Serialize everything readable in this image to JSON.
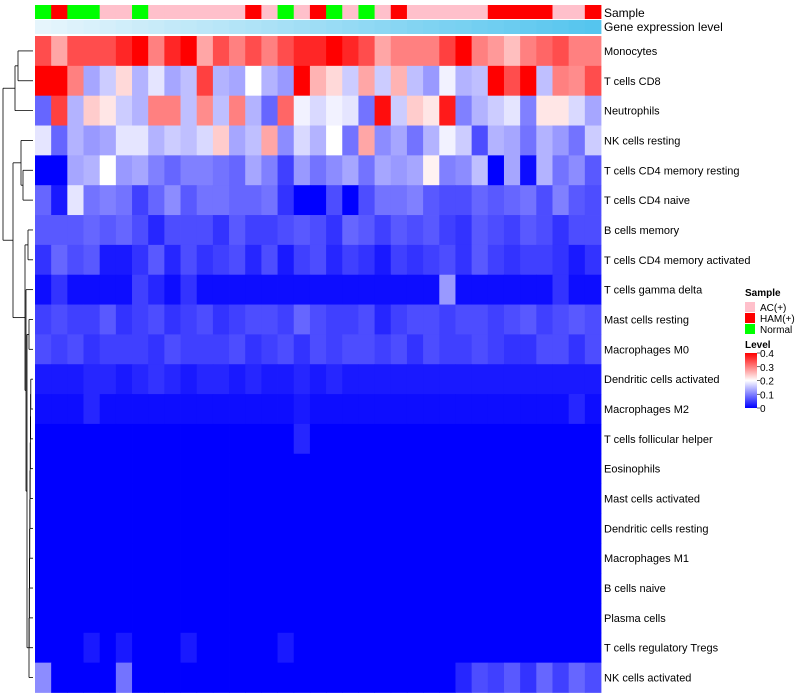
{
  "colors": {
    "low": "#0000FF",
    "mid": "#FFFFFF",
    "high": "#FF0000",
    "sample_ac": "#FFC0CB",
    "sample_ham": "#FF0000",
    "sample_normal": "#00FF00",
    "gene_expression_light": "#E6F5FC",
    "gene_expression_dark": "#55C5EE",
    "dendrogram": "#000000"
  },
  "chart_data": {
    "type": "heatmap",
    "title": "",
    "annotation_tracks": [
      {
        "name": "Sample",
        "label": "Sample"
      },
      {
        "name": "Gene expression level",
        "label": "Gene expression level"
      }
    ],
    "sample_track": [
      "Normal",
      "HAM(+)",
      "Normal",
      "Normal",
      "AC(+)",
      "AC(+)",
      "Normal",
      "AC(+)",
      "AC(+)",
      "AC(+)",
      "AC(+)",
      "AC(+)",
      "AC(+)",
      "HAM(+)",
      "AC(+)",
      "Normal",
      "AC(+)",
      "HAM(+)",
      "Normal",
      "AC(+)",
      "Normal",
      "AC(+)",
      "HAM(+)",
      "AC(+)",
      "AC(+)",
      "AC(+)",
      "AC(+)",
      "AC(+)",
      "HAM(+)",
      "HAM(+)",
      "HAM(+)",
      "HAM(+)",
      "AC(+)",
      "AC(+)",
      "HAM(+)"
    ],
    "gene_expression_level": [
      0.0,
      0.03,
      0.06,
      0.09,
      0.12,
      0.15,
      0.18,
      0.21,
      0.24,
      0.26,
      0.29,
      0.32,
      0.35,
      0.38,
      0.41,
      0.44,
      0.47,
      0.5,
      0.53,
      0.56,
      0.59,
      0.62,
      0.65,
      0.68,
      0.71,
      0.74,
      0.76,
      0.79,
      0.82,
      0.85,
      0.88,
      0.91,
      0.94,
      0.97,
      1.0
    ],
    "rows": [
      "Monocytes",
      "T cells CD8",
      "Neutrophils",
      "NK cells resting",
      "T cells CD4 memory resting",
      "T cells CD4 naive",
      "B cells memory",
      "T cells CD4 memory activated",
      "T cells gamma delta",
      "Mast cells resting",
      "Macrophages M0",
      "Dendritic cells activated",
      "Macrophages M2",
      "T cells follicular helper",
      "Eosinophils",
      "Mast cells activated",
      "Dendritic cells resting",
      "Macrophages M1",
      "B cells naive",
      "Plasma cells",
      "T cells regulatory  Tregs",
      "NK cells activated"
    ],
    "values": [
      [
        0.34,
        0.27,
        0.34,
        0.34,
        0.34,
        0.37,
        0.4,
        0.3,
        0.37,
        0.4,
        0.27,
        0.34,
        0.3,
        0.34,
        0.3,
        0.34,
        0.37,
        0.37,
        0.4,
        0.37,
        0.34,
        0.27,
        0.3,
        0.3,
        0.3,
        0.35,
        0.4,
        0.3,
        0.28,
        0.25,
        0.3,
        0.32,
        0.34,
        0.3,
        0.3
      ],
      [
        0.4,
        0.4,
        0.3,
        0.13,
        0.16,
        0.23,
        0.14,
        0.18,
        0.13,
        0.15,
        0.35,
        0.14,
        0.13,
        0.2,
        0.14,
        0.12,
        0.4,
        0.26,
        0.23,
        0.16,
        0.27,
        0.16,
        0.26,
        0.15,
        0.12,
        0.19,
        0.14,
        0.15,
        0.4,
        0.34,
        0.4,
        0.15,
        0.3,
        0.29,
        0.34
      ],
      [
        0.08,
        0.35,
        0.14,
        0.24,
        0.22,
        0.16,
        0.14,
        0.3,
        0.3,
        0.15,
        0.29,
        0.15,
        0.3,
        0.14,
        0.08,
        0.32,
        0.19,
        0.17,
        0.19,
        0.18,
        0.09,
        0.39,
        0.16,
        0.24,
        0.22,
        0.38,
        0.1,
        0.14,
        0.16,
        0.18,
        0.1,
        0.22,
        0.22,
        0.17,
        0.13
      ],
      [
        0.18,
        0.08,
        0.14,
        0.12,
        0.13,
        0.18,
        0.18,
        0.14,
        0.16,
        0.15,
        0.17,
        0.24,
        0.13,
        0.15,
        0.27,
        0.11,
        0.17,
        0.14,
        0.2,
        0.09,
        0.27,
        0.11,
        0.13,
        0.09,
        0.14,
        0.19,
        0.16,
        0.06,
        0.14,
        0.13,
        0.09,
        0.14,
        0.12,
        0.09,
        0.16
      ],
      [
        0.0,
        0.0,
        0.13,
        0.14,
        0.2,
        0.12,
        0.13,
        0.1,
        0.08,
        0.1,
        0.1,
        0.09,
        0.08,
        0.13,
        0.1,
        0.05,
        0.12,
        0.09,
        0.11,
        0.13,
        0.09,
        0.13,
        0.12,
        0.13,
        0.21,
        0.1,
        0.11,
        0.15,
        0.0,
        0.13,
        0.01,
        0.14,
        0.09,
        0.11,
        0.07
      ],
      [
        0.08,
        0.02,
        0.18,
        0.09,
        0.1,
        0.09,
        0.05,
        0.08,
        0.11,
        0.07,
        0.09,
        0.09,
        0.08,
        0.08,
        0.09,
        0.04,
        0.0,
        0.0,
        0.06,
        0.0,
        0.06,
        0.09,
        0.09,
        0.1,
        0.07,
        0.06,
        0.06,
        0.08,
        0.07,
        0.08,
        0.09,
        0.06,
        0.1,
        0.07,
        0.06
      ],
      [
        0.07,
        0.07,
        0.07,
        0.08,
        0.07,
        0.08,
        0.06,
        0.03,
        0.06,
        0.06,
        0.06,
        0.04,
        0.07,
        0.05,
        0.05,
        0.06,
        0.07,
        0.06,
        0.04,
        0.08,
        0.07,
        0.05,
        0.07,
        0.06,
        0.07,
        0.05,
        0.04,
        0.07,
        0.06,
        0.05,
        0.07,
        0.06,
        0.04,
        0.06,
        0.06
      ],
      [
        0.04,
        0.08,
        0.06,
        0.07,
        0.02,
        0.02,
        0.04,
        0.07,
        0.03,
        0.06,
        0.04,
        0.05,
        0.06,
        0.03,
        0.06,
        0.02,
        0.05,
        0.06,
        0.03,
        0.05,
        0.04,
        0.02,
        0.05,
        0.04,
        0.05,
        0.06,
        0.04,
        0.07,
        0.05,
        0.04,
        0.05,
        0.05,
        0.04,
        0.02,
        0.04
      ],
      [
        0.01,
        0.04,
        0.01,
        0.01,
        0.01,
        0.01,
        0.05,
        0.03,
        0.01,
        0.04,
        0.01,
        0.01,
        0.01,
        0.01,
        0.01,
        0.01,
        0.01,
        0.01,
        0.01,
        0.01,
        0.01,
        0.01,
        0.01,
        0.01,
        0.01,
        0.12,
        0.01,
        0.01,
        0.01,
        0.01,
        0.01,
        0.01,
        0.04,
        0.01,
        0.01
      ],
      [
        0.05,
        0.06,
        0.05,
        0.05,
        0.07,
        0.04,
        0.05,
        0.06,
        0.04,
        0.05,
        0.06,
        0.04,
        0.05,
        0.06,
        0.06,
        0.05,
        0.08,
        0.06,
        0.05,
        0.05,
        0.06,
        0.03,
        0.05,
        0.06,
        0.06,
        0.05,
        0.06,
        0.06,
        0.05,
        0.06,
        0.07,
        0.05,
        0.06,
        0.07,
        0.06
      ],
      [
        0.06,
        0.05,
        0.06,
        0.04,
        0.05,
        0.05,
        0.05,
        0.04,
        0.06,
        0.05,
        0.05,
        0.05,
        0.06,
        0.04,
        0.05,
        0.06,
        0.04,
        0.06,
        0.05,
        0.06,
        0.06,
        0.05,
        0.06,
        0.04,
        0.06,
        0.05,
        0.05,
        0.06,
        0.05,
        0.04,
        0.04,
        0.06,
        0.06,
        0.04,
        0.06
      ],
      [
        0.02,
        0.02,
        0.02,
        0.03,
        0.03,
        0.02,
        0.03,
        0.04,
        0.03,
        0.02,
        0.03,
        0.03,
        0.02,
        0.03,
        0.02,
        0.02,
        0.03,
        0.02,
        0.03,
        0.02,
        0.02,
        0.02,
        0.02,
        0.02,
        0.02,
        0.02,
        0.02,
        0.02,
        0.02,
        0.02,
        0.02,
        0.02,
        0.02,
        0.02,
        0.02
      ],
      [
        0.01,
        0.01,
        0.01,
        0.03,
        0.01,
        0.01,
        0.01,
        0.01,
        0.01,
        0.01,
        0.01,
        0.01,
        0.01,
        0.01,
        0.01,
        0.01,
        0.02,
        0.01,
        0.01,
        0.01,
        0.01,
        0.01,
        0.01,
        0.01,
        0.01,
        0.01,
        0.01,
        0.01,
        0.01,
        0.01,
        0.01,
        0.01,
        0.01,
        0.03,
        0.01
      ],
      [
        0.0,
        0.0,
        0.0,
        0.0,
        0.0,
        0.0,
        0.0,
        0.0,
        0.0,
        0.0,
        0.0,
        0.0,
        0.0,
        0.0,
        0.0,
        0.0,
        0.03,
        0.0,
        0.0,
        0.0,
        0.0,
        0.0,
        0.0,
        0.0,
        0.0,
        0.0,
        0.0,
        0.0,
        0.0,
        0.0,
        0.0,
        0.0,
        0.0,
        0.0,
        0.0
      ],
      [
        0.0,
        0.0,
        0.0,
        0.0,
        0.0,
        0.0,
        0.0,
        0.0,
        0.0,
        0.0,
        0.0,
        0.0,
        0.0,
        0.0,
        0.0,
        0.0,
        0.0,
        0.0,
        0.0,
        0.0,
        0.0,
        0.0,
        0.0,
        0.0,
        0.0,
        0.0,
        0.0,
        0.0,
        0.0,
        0.0,
        0.0,
        0.0,
        0.0,
        0.0,
        0.0
      ],
      [
        0.0,
        0.0,
        0.0,
        0.0,
        0.0,
        0.0,
        0.0,
        0.0,
        0.0,
        0.0,
        0.0,
        0.0,
        0.0,
        0.0,
        0.0,
        0.0,
        0.0,
        0.0,
        0.0,
        0.0,
        0.0,
        0.0,
        0.0,
        0.0,
        0.0,
        0.0,
        0.0,
        0.0,
        0.0,
        0.0,
        0.0,
        0.0,
        0.0,
        0.0,
        0.0
      ],
      [
        0.0,
        0.0,
        0.0,
        0.0,
        0.0,
        0.0,
        0.0,
        0.0,
        0.0,
        0.0,
        0.0,
        0.0,
        0.0,
        0.0,
        0.0,
        0.0,
        0.0,
        0.0,
        0.0,
        0.0,
        0.0,
        0.0,
        0.0,
        0.0,
        0.0,
        0.0,
        0.0,
        0.0,
        0.0,
        0.0,
        0.0,
        0.0,
        0.0,
        0.0,
        0.0
      ],
      [
        0.0,
        0.0,
        0.0,
        0.0,
        0.0,
        0.0,
        0.0,
        0.0,
        0.0,
        0.0,
        0.0,
        0.0,
        0.0,
        0.0,
        0.0,
        0.0,
        0.0,
        0.0,
        0.0,
        0.0,
        0.0,
        0.0,
        0.0,
        0.0,
        0.0,
        0.0,
        0.0,
        0.0,
        0.0,
        0.0,
        0.0,
        0.0,
        0.0,
        0.0,
        0.0
      ],
      [
        0.0,
        0.0,
        0.0,
        0.0,
        0.0,
        0.0,
        0.0,
        0.0,
        0.0,
        0.0,
        0.0,
        0.0,
        0.0,
        0.0,
        0.0,
        0.0,
        0.0,
        0.0,
        0.0,
        0.0,
        0.0,
        0.0,
        0.0,
        0.0,
        0.0,
        0.0,
        0.0,
        0.0,
        0.0,
        0.0,
        0.0,
        0.0,
        0.0,
        0.0,
        0.0
      ],
      [
        0.0,
        0.0,
        0.0,
        0.0,
        0.0,
        0.0,
        0.0,
        0.0,
        0.0,
        0.0,
        0.0,
        0.0,
        0.0,
        0.0,
        0.0,
        0.0,
        0.0,
        0.0,
        0.0,
        0.0,
        0.0,
        0.0,
        0.0,
        0.0,
        0.0,
        0.0,
        0.0,
        0.0,
        0.0,
        0.0,
        0.0,
        0.0,
        0.0,
        0.0,
        0.0
      ],
      [
        0.0,
        0.0,
        0.0,
        0.02,
        0.0,
        0.02,
        0.0,
        0.0,
        0.0,
        0.02,
        0.0,
        0.0,
        0.0,
        0.0,
        0.0,
        0.02,
        0.0,
        0.0,
        0.0,
        0.0,
        0.0,
        0.0,
        0.0,
        0.0,
        0.0,
        0.0,
        0.0,
        0.0,
        0.0,
        0.0,
        0.0,
        0.0,
        0.0,
        0.0,
        0.0
      ],
      [
        0.11,
        0.0,
        0.0,
        0.0,
        0.0,
        0.09,
        0.0,
        0.0,
        0.0,
        0.0,
        0.0,
        0.0,
        0.0,
        0.0,
        0.0,
        0.0,
        0.0,
        0.0,
        0.0,
        0.0,
        0.0,
        0.0,
        0.0,
        0.0,
        0.0,
        0.0,
        0.03,
        0.06,
        0.05,
        0.07,
        0.04,
        0.08,
        0.05,
        0.08,
        0.06
      ]
    ],
    "color_scale": {
      "min": 0,
      "max": 0.4
    },
    "legend": {
      "position": "right",
      "sample_title": "Sample",
      "sample_entries": [
        {
          "label": "AC(+)",
          "color": "#FFC0CB"
        },
        {
          "label": "HAM(+)",
          "color": "#FF0000"
        },
        {
          "label": "Normal",
          "color": "#00FF00"
        }
      ],
      "level_title": "Level",
      "level_ticks": [
        {
          "value": 0.4,
          "label": "0.4"
        },
        {
          "value": 0.3,
          "label": "0.3"
        },
        {
          "value": 0.2,
          "label": "0.2"
        },
        {
          "value": 0.1,
          "label": "0.1"
        },
        {
          "value": 0,
          "label": "0"
        }
      ]
    }
  }
}
